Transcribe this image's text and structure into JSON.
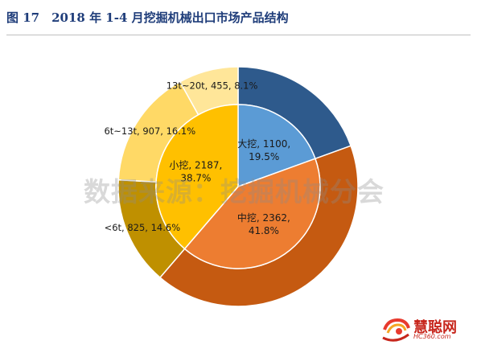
{
  "header": {
    "title": "图 17　2018 年 1-4 月挖掘机械出口市场产品结构"
  },
  "watermark": "数据来源：挖掘机械分会",
  "logo": {
    "name": "慧聪网",
    "sub": "HC360.com"
  },
  "chart_data": {
    "type": "pie",
    "subtype": "nested-donut",
    "title": "",
    "inner": [
      {
        "label": "大挖, 1100, 19.5%",
        "name": "大挖",
        "value": 1100,
        "percent": 19.5,
        "color": "#5b9bd5"
      },
      {
        "label": "中挖, 2362, 41.8%",
        "name": "中挖",
        "value": 2362,
        "percent": 41.8,
        "color": "#ed7d31"
      },
      {
        "label": "小挖, 2187, 38.7%",
        "name": "小挖",
        "value": 2187,
        "percent": 38.7,
        "color": "#ffc000"
      }
    ],
    "outer": [
      {
        "label": "大挖",
        "value": 1100,
        "percent": 19.5,
        "color": "#2e5a8c"
      },
      {
        "label": "中挖",
        "value": 2362,
        "percent": 41.8,
        "color": "#c55a11"
      },
      {
        "label": "<6t, 825, 14.6%",
        "name": "<6t",
        "value": 825,
        "percent": 14.6,
        "color": "#bf9000"
      },
      {
        "label": "6t~13t, 907, 16.1%",
        "name": "6t~13t",
        "value": 907,
        "percent": 16.1,
        "color": "#ffd966"
      },
      {
        "label": "13t~20t, 455, 8.1%",
        "name": "13t~20t",
        "value": 455,
        "percent": 8.1,
        "color": "#ffe699"
      }
    ]
  }
}
